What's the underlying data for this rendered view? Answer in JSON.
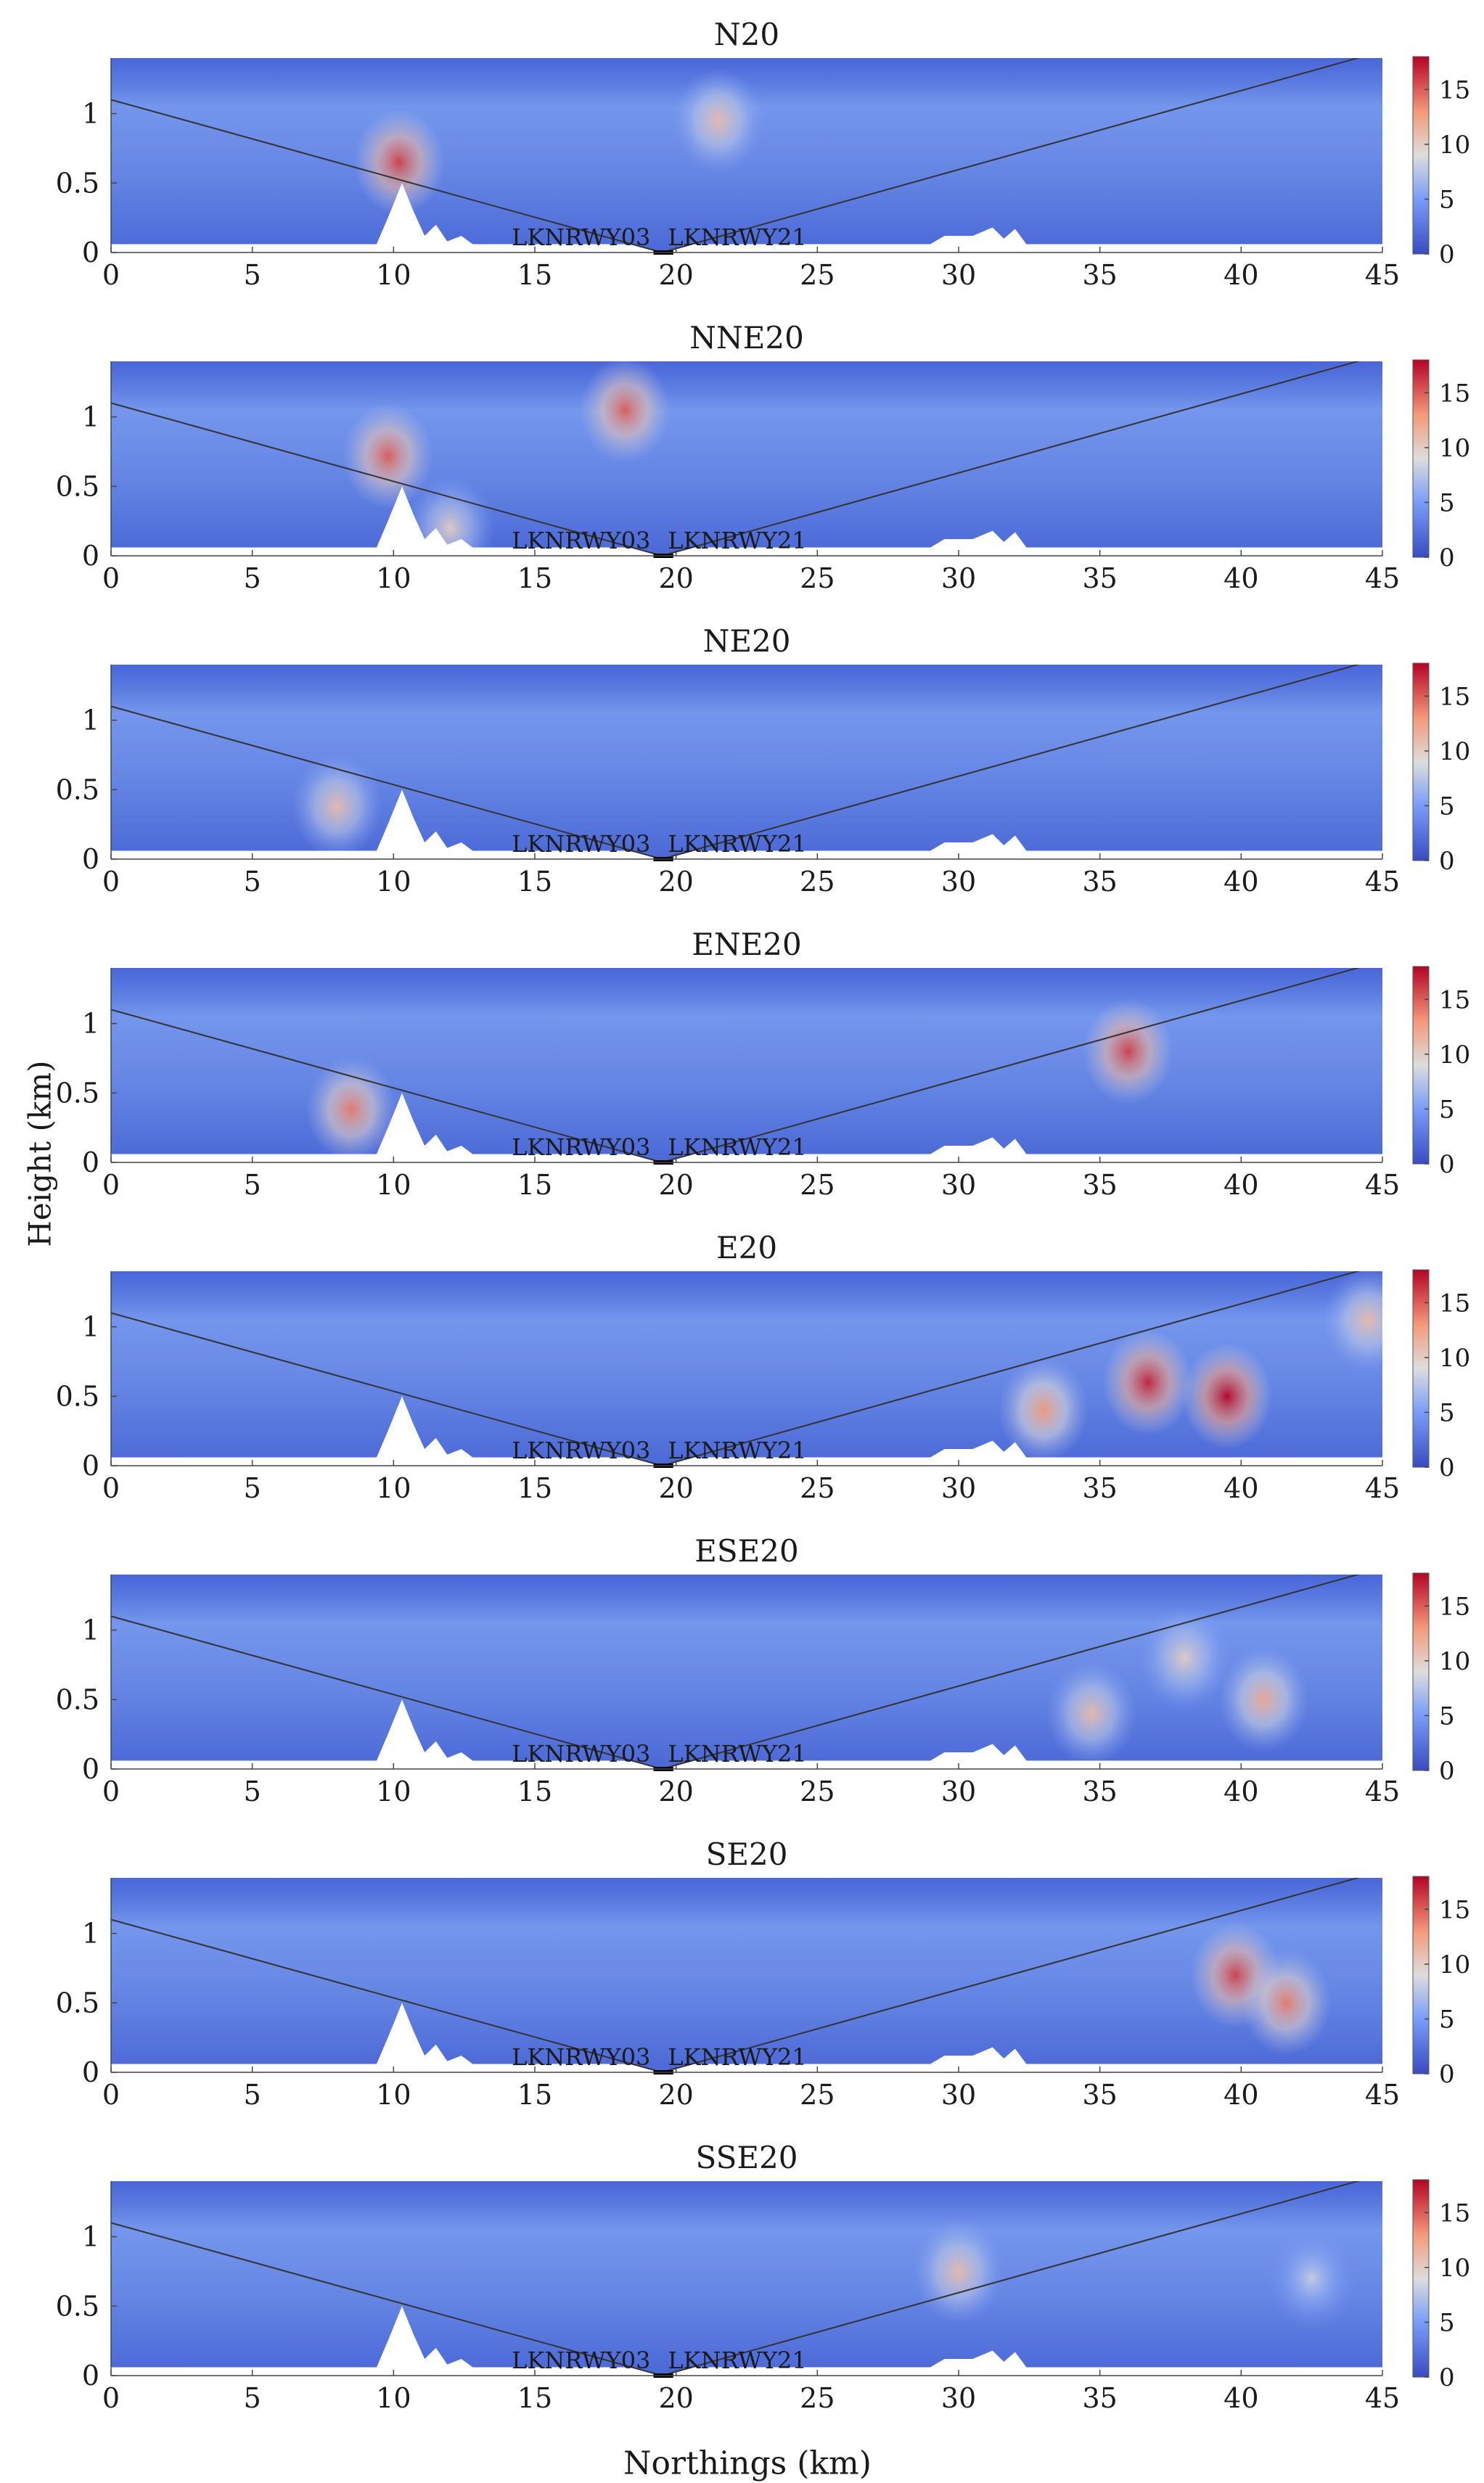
{
  "figure": {
    "ylabel": "Height (km)",
    "xlabel": "Northings (km)"
  },
  "chart_data": [
    {
      "type": "heatmap",
      "title": "N20",
      "xlim": [
        0,
        45
      ],
      "ylim": [
        0,
        1.4
      ],
      "x_ticks": [
        0,
        5,
        10,
        15,
        20,
        25,
        30,
        35,
        40,
        45
      ],
      "y_ticks": [
        0,
        0.5,
        1
      ],
      "colorbar": {
        "ticks": [
          0,
          5,
          10,
          15
        ],
        "range": [
          0,
          18
        ],
        "colormap": "blue-white-red"
      },
      "runway_labels": [
        "LKNRWY03",
        "LKNRWY21"
      ],
      "glide_path": [
        [
          0,
          1.1
        ],
        [
          19.5,
          0
        ],
        [
          45,
          1.45
        ]
      ],
      "hotspots": [
        {
          "x": 10.2,
          "y": 0.65,
          "value": 16
        },
        {
          "x": 21.5,
          "y": 0.95,
          "value": 11
        }
      ]
    },
    {
      "type": "heatmap",
      "title": "NNE20",
      "xlim": [
        0,
        45
      ],
      "ylim": [
        0,
        1.4
      ],
      "x_ticks": [
        0,
        5,
        10,
        15,
        20,
        25,
        30,
        35,
        40,
        45
      ],
      "y_ticks": [
        0,
        0.5,
        1
      ],
      "colorbar": {
        "ticks": [
          0,
          5,
          10,
          15
        ],
        "range": [
          0,
          18
        ],
        "colormap": "blue-white-red"
      },
      "runway_labels": [
        "LKNRWY03",
        "LKNRWY21"
      ],
      "glide_path": [
        [
          0,
          1.1
        ],
        [
          19.5,
          0
        ],
        [
          45,
          1.45
        ]
      ],
      "hotspots": [
        {
          "x": 9.8,
          "y": 0.72,
          "value": 15
        },
        {
          "x": 18.2,
          "y": 1.05,
          "value": 15
        },
        {
          "x": 12,
          "y": 0.2,
          "value": 10
        }
      ]
    },
    {
      "type": "heatmap",
      "title": "NE20",
      "xlim": [
        0,
        45
      ],
      "ylim": [
        0,
        1.4
      ],
      "x_ticks": [
        0,
        5,
        10,
        15,
        20,
        25,
        30,
        35,
        40,
        45
      ],
      "y_ticks": [
        0,
        0.5,
        1
      ],
      "colorbar": {
        "ticks": [
          0,
          5,
          10,
          15
        ],
        "range": [
          0,
          18
        ],
        "colormap": "blue-white-red"
      },
      "runway_labels": [
        "LKNRWY03",
        "LKNRWY21"
      ],
      "glide_path": [
        [
          0,
          1.1
        ],
        [
          19.5,
          0
        ],
        [
          45,
          1.45
        ]
      ],
      "hotspots": [
        {
          "x": 8,
          "y": 0.38,
          "value": 11
        }
      ]
    },
    {
      "type": "heatmap",
      "title": "ENE20",
      "xlim": [
        0,
        45
      ],
      "ylim": [
        0,
        1.4
      ],
      "x_ticks": [
        0,
        5,
        10,
        15,
        20,
        25,
        30,
        35,
        40,
        45
      ],
      "y_ticks": [
        0,
        0.5,
        1
      ],
      "colorbar": {
        "ticks": [
          0,
          5,
          10,
          15
        ],
        "range": [
          0,
          18
        ],
        "colormap": "blue-white-red"
      },
      "runway_labels": [
        "LKNRWY03",
        "LKNRWY21"
      ],
      "glide_path": [
        [
          0,
          1.1
        ],
        [
          19.5,
          0
        ],
        [
          45,
          1.45
        ]
      ],
      "hotspots": [
        {
          "x": 8.5,
          "y": 0.38,
          "value": 14
        },
        {
          "x": 36,
          "y": 0.8,
          "value": 16
        }
      ]
    },
    {
      "type": "heatmap",
      "title": "E20",
      "xlim": [
        0,
        45
      ],
      "ylim": [
        0,
        1.4
      ],
      "x_ticks": [
        0,
        5,
        10,
        15,
        20,
        25,
        30,
        35,
        40,
        45
      ],
      "y_ticks": [
        0,
        0.5,
        1
      ],
      "colorbar": {
        "ticks": [
          0,
          5,
          10,
          15
        ],
        "range": [
          0,
          18
        ],
        "colormap": "blue-white-red"
      },
      "runway_labels": [
        "LKNRWY03",
        "LKNRWY21"
      ],
      "glide_path": [
        [
          0,
          1.1
        ],
        [
          19.5,
          0
        ],
        [
          45,
          1.45
        ]
      ],
      "hotspots": [
        {
          "x": 33,
          "y": 0.4,
          "value": 13
        },
        {
          "x": 36.7,
          "y": 0.6,
          "value": 17
        },
        {
          "x": 39.5,
          "y": 0.5,
          "value": 18
        },
        {
          "x": 44.5,
          "y": 1.05,
          "value": 11
        }
      ]
    },
    {
      "type": "heatmap",
      "title": "ESE20",
      "xlim": [
        0,
        45
      ],
      "ylim": [
        0,
        1.4
      ],
      "x_ticks": [
        0,
        5,
        10,
        15,
        20,
        25,
        30,
        35,
        40,
        45
      ],
      "y_ticks": [
        0,
        0.5,
        1
      ],
      "colorbar": {
        "ticks": [
          0,
          5,
          10,
          15
        ],
        "range": [
          0,
          18
        ],
        "colormap": "blue-white-red"
      },
      "runway_labels": [
        "LKNRWY03",
        "LKNRWY21"
      ],
      "glide_path": [
        [
          0,
          1.1
        ],
        [
          19.5,
          0
        ],
        [
          45,
          1.45
        ]
      ],
      "hotspots": [
        {
          "x": 34.7,
          "y": 0.4,
          "value": 11
        },
        {
          "x": 38,
          "y": 0.8,
          "value": 10
        },
        {
          "x": 40.8,
          "y": 0.5,
          "value": 12
        }
      ]
    },
    {
      "type": "heatmap",
      "title": "SE20",
      "xlim": [
        0,
        45
      ],
      "ylim": [
        0,
        1.4
      ],
      "x_ticks": [
        0,
        5,
        10,
        15,
        20,
        25,
        30,
        35,
        40,
        45
      ],
      "y_ticks": [
        0,
        0.5,
        1
      ],
      "colorbar": {
        "ticks": [
          0,
          5,
          10,
          15
        ],
        "range": [
          0,
          18
        ],
        "colormap": "blue-white-red"
      },
      "runway_labels": [
        "LKNRWY03",
        "LKNRWY21"
      ],
      "glide_path": [
        [
          0,
          1.1
        ],
        [
          19.5,
          0
        ],
        [
          45,
          1.45
        ]
      ],
      "hotspots": [
        {
          "x": 39.8,
          "y": 0.7,
          "value": 16
        },
        {
          "x": 41.6,
          "y": 0.5,
          "value": 14
        }
      ]
    },
    {
      "type": "heatmap",
      "title": "SSE20",
      "xlim": [
        0,
        45
      ],
      "ylim": [
        0,
        1.4
      ],
      "x_ticks": [
        0,
        5,
        10,
        15,
        20,
        25,
        30,
        35,
        40,
        45
      ],
      "y_ticks": [
        0,
        0.5,
        1
      ],
      "colorbar": {
        "ticks": [
          0,
          5,
          10,
          15
        ],
        "range": [
          0,
          18
        ],
        "colormap": "blue-white-red"
      },
      "runway_labels": [
        "LKNRWY03",
        "LKNRWY21"
      ],
      "glide_path": [
        [
          0,
          1.1
        ],
        [
          19.5,
          0
        ],
        [
          45,
          1.45
        ]
      ],
      "hotspots": [
        {
          "x": 30,
          "y": 0.75,
          "value": 11
        },
        {
          "x": 42.5,
          "y": 0.7,
          "value": 8
        }
      ]
    }
  ]
}
